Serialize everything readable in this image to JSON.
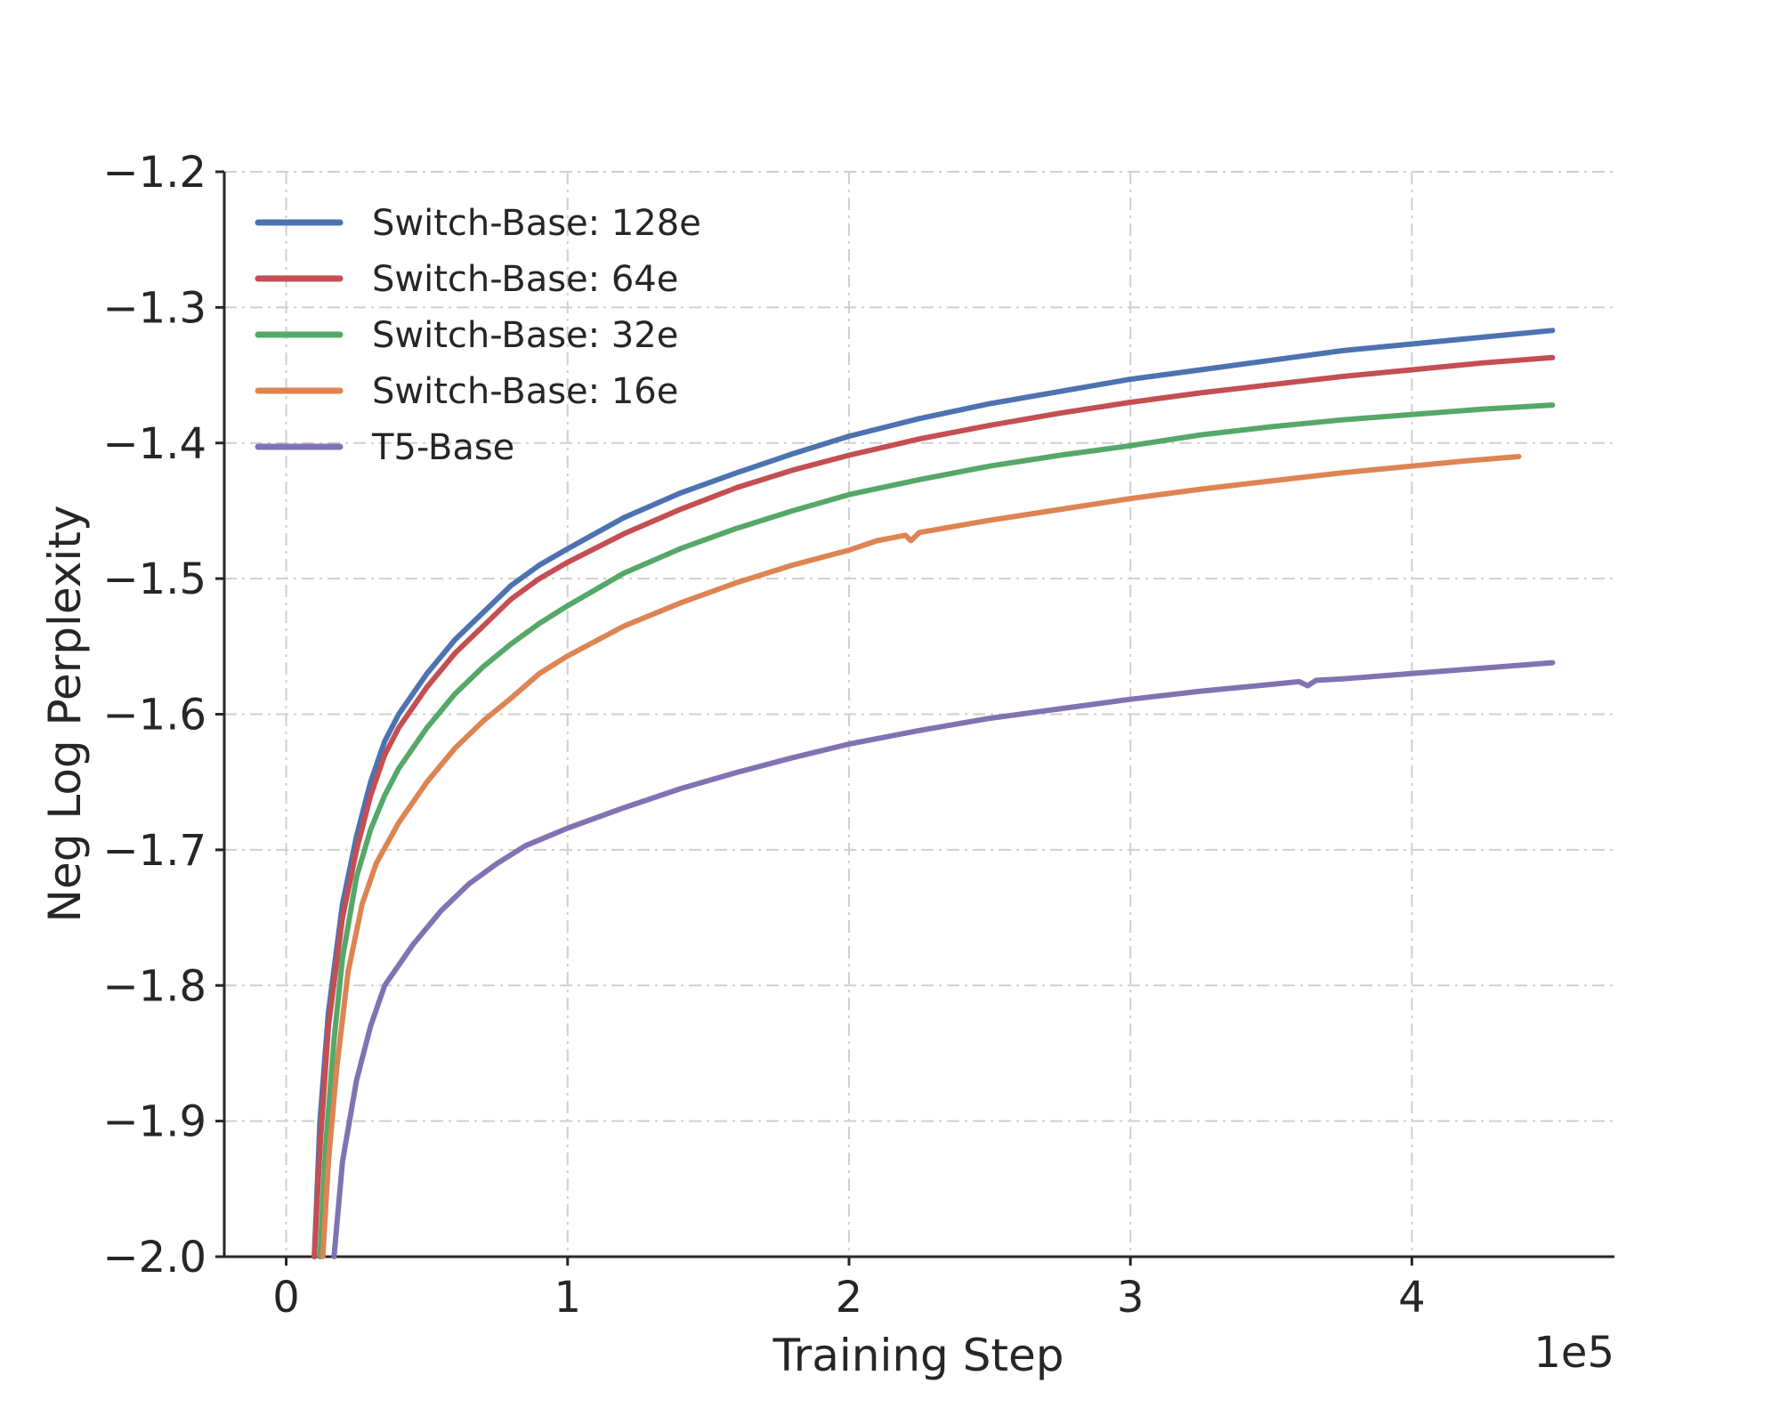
{
  "chart_data": {
    "type": "line",
    "title": "",
    "xlabel": "Training Step",
    "ylabel": "Neg Log Perplexity",
    "x_offset_label": "1e5",
    "xlim": [
      -0.22,
      4.72
    ],
    "ylim": [
      -2.0,
      -1.2
    ],
    "x_ticks": [
      0,
      1,
      2,
      3,
      4
    ],
    "x_tick_labels": [
      "0",
      "1",
      "2",
      "3",
      "4"
    ],
    "y_ticks": [
      -2.0,
      -1.9,
      -1.8,
      -1.7,
      -1.6,
      -1.5,
      -1.4,
      -1.3,
      -1.2
    ],
    "y_tick_labels": [
      "−2.0",
      "−1.9",
      "−1.8",
      "−1.7",
      "−1.6",
      "−1.5",
      "−1.4",
      "−1.3",
      "−1.2"
    ],
    "grid": true,
    "legend_position": "top-left",
    "series": [
      {
        "name": "Switch-Base: 128e",
        "color": "#4c72b0",
        "points": [
          [
            0.1,
            -2.0
          ],
          [
            0.12,
            -1.9
          ],
          [
            0.15,
            -1.82
          ],
          [
            0.2,
            -1.74
          ],
          [
            0.25,
            -1.69
          ],
          [
            0.3,
            -1.65
          ],
          [
            0.35,
            -1.62
          ],
          [
            0.4,
            -1.6
          ],
          [
            0.5,
            -1.57
          ],
          [
            0.6,
            -1.545
          ],
          [
            0.7,
            -1.525
          ],
          [
            0.8,
            -1.505
          ],
          [
            0.9,
            -1.49
          ],
          [
            1.0,
            -1.478
          ],
          [
            1.2,
            -1.455
          ],
          [
            1.4,
            -1.437
          ],
          [
            1.6,
            -1.422
          ],
          [
            1.8,
            -1.408
          ],
          [
            2.0,
            -1.395
          ],
          [
            2.25,
            -1.382
          ],
          [
            2.5,
            -1.371
          ],
          [
            2.75,
            -1.362
          ],
          [
            3.0,
            -1.353
          ],
          [
            3.25,
            -1.346
          ],
          [
            3.5,
            -1.339
          ],
          [
            3.75,
            -1.332
          ],
          [
            4.0,
            -1.327
          ],
          [
            4.25,
            -1.322
          ],
          [
            4.5,
            -1.317
          ]
        ]
      },
      {
        "name": "Switch-Base: 64e",
        "color": "#c44e52",
        "points": [
          [
            0.1,
            -2.0
          ],
          [
            0.12,
            -1.92
          ],
          [
            0.15,
            -1.83
          ],
          [
            0.2,
            -1.75
          ],
          [
            0.25,
            -1.7
          ],
          [
            0.3,
            -1.66
          ],
          [
            0.35,
            -1.63
          ],
          [
            0.4,
            -1.61
          ],
          [
            0.5,
            -1.58
          ],
          [
            0.6,
            -1.555
          ],
          [
            0.7,
            -1.535
          ],
          [
            0.8,
            -1.515
          ],
          [
            0.9,
            -1.5
          ],
          [
            1.0,
            -1.488
          ],
          [
            1.2,
            -1.467
          ],
          [
            1.4,
            -1.449
          ],
          [
            1.6,
            -1.433
          ],
          [
            1.8,
            -1.42
          ],
          [
            2.0,
            -1.409
          ],
          [
            2.25,
            -1.397
          ],
          [
            2.5,
            -1.387
          ],
          [
            2.75,
            -1.378
          ],
          [
            3.0,
            -1.37
          ],
          [
            3.25,
            -1.363
          ],
          [
            3.5,
            -1.357
          ],
          [
            3.75,
            -1.351
          ],
          [
            4.0,
            -1.346
          ],
          [
            4.25,
            -1.341
          ],
          [
            4.5,
            -1.337
          ]
        ]
      },
      {
        "name": "Switch-Base: 32e",
        "color": "#55a868",
        "points": [
          [
            0.12,
            -2.0
          ],
          [
            0.14,
            -1.92
          ],
          [
            0.17,
            -1.84
          ],
          [
            0.2,
            -1.78
          ],
          [
            0.25,
            -1.72
          ],
          [
            0.3,
            -1.685
          ],
          [
            0.35,
            -1.66
          ],
          [
            0.4,
            -1.64
          ],
          [
            0.5,
            -1.61
          ],
          [
            0.6,
            -1.585
          ],
          [
            0.7,
            -1.565
          ],
          [
            0.8,
            -1.548
          ],
          [
            0.9,
            -1.533
          ],
          [
            1.0,
            -1.52
          ],
          [
            1.2,
            -1.496
          ],
          [
            1.4,
            -1.478
          ],
          [
            1.6,
            -1.463
          ],
          [
            1.8,
            -1.45
          ],
          [
            2.0,
            -1.438
          ],
          [
            2.25,
            -1.427
          ],
          [
            2.5,
            -1.417
          ],
          [
            2.75,
            -1.409
          ],
          [
            3.0,
            -1.402
          ],
          [
            3.25,
            -1.394
          ],
          [
            3.5,
            -1.388
          ],
          [
            3.75,
            -1.383
          ],
          [
            4.0,
            -1.379
          ],
          [
            4.25,
            -1.375
          ],
          [
            4.5,
            -1.372
          ]
        ]
      },
      {
        "name": "Switch-Base: 16e",
        "color": "#dd8452",
        "points": [
          [
            0.13,
            -2.0
          ],
          [
            0.15,
            -1.93
          ],
          [
            0.18,
            -1.86
          ],
          [
            0.22,
            -1.79
          ],
          [
            0.27,
            -1.74
          ],
          [
            0.32,
            -1.71
          ],
          [
            0.4,
            -1.68
          ],
          [
            0.5,
            -1.65
          ],
          [
            0.6,
            -1.625
          ],
          [
            0.7,
            -1.605
          ],
          [
            0.8,
            -1.588
          ],
          [
            0.9,
            -1.57
          ],
          [
            1.0,
            -1.557
          ],
          [
            1.2,
            -1.535
          ],
          [
            1.4,
            -1.518
          ],
          [
            1.6,
            -1.503
          ],
          [
            1.8,
            -1.49
          ],
          [
            2.0,
            -1.479
          ],
          [
            2.1,
            -1.472
          ],
          [
            2.2,
            -1.468
          ],
          [
            2.22,
            -1.472
          ],
          [
            2.25,
            -1.466
          ],
          [
            2.5,
            -1.457
          ],
          [
            2.75,
            -1.449
          ],
          [
            3.0,
            -1.441
          ],
          [
            3.25,
            -1.434
          ],
          [
            3.5,
            -1.428
          ],
          [
            3.75,
            -1.422
          ],
          [
            4.0,
            -1.417
          ],
          [
            4.2,
            -1.413
          ],
          [
            4.38,
            -1.41
          ]
        ]
      },
      {
        "name": "T5-Base",
        "color": "#8172b2",
        "points": [
          [
            0.17,
            -2.0
          ],
          [
            0.2,
            -1.93
          ],
          [
            0.25,
            -1.87
          ],
          [
            0.3,
            -1.83
          ],
          [
            0.35,
            -1.8
          ],
          [
            0.45,
            -1.77
          ],
          [
            0.55,
            -1.745
          ],
          [
            0.65,
            -1.725
          ],
          [
            0.75,
            -1.71
          ],
          [
            0.85,
            -1.697
          ],
          [
            1.0,
            -1.684
          ],
          [
            1.2,
            -1.669
          ],
          [
            1.4,
            -1.655
          ],
          [
            1.6,
            -1.643
          ],
          [
            1.8,
            -1.632
          ],
          [
            2.0,
            -1.622
          ],
          [
            2.25,
            -1.612
          ],
          [
            2.5,
            -1.603
          ],
          [
            2.75,
            -1.596
          ],
          [
            3.0,
            -1.589
          ],
          [
            3.25,
            -1.583
          ],
          [
            3.5,
            -1.578
          ],
          [
            3.6,
            -1.576
          ],
          [
            3.63,
            -1.579
          ],
          [
            3.66,
            -1.575
          ],
          [
            3.75,
            -1.574
          ],
          [
            4.0,
            -1.57
          ],
          [
            4.25,
            -1.566
          ],
          [
            4.5,
            -1.562
          ]
        ]
      }
    ]
  }
}
